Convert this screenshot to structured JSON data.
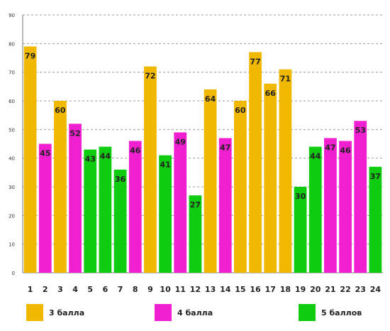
{
  "chart_data": {
    "type": "bar",
    "categories": [
      "1",
      "2",
      "3",
      "4",
      "5",
      "6",
      "7",
      "8",
      "9",
      "10",
      "11",
      "12",
      "13",
      "14",
      "15",
      "16",
      "17",
      "18",
      "19",
      "20",
      "21",
      "22",
      "23",
      "24"
    ],
    "values": [
      79,
      45,
      60,
      52,
      43,
      44,
      36,
      46,
      72,
      41,
      49,
      27,
      64,
      47,
      60,
      77,
      66,
      71,
      30,
      44,
      47,
      46,
      53,
      37
    ],
    "groups": [
      "3",
      "4",
      "3",
      "4",
      "5",
      "5",
      "5",
      "4",
      "3",
      "5",
      "4",
      "5",
      "3",
      "4",
      "3",
      "3",
      "3",
      "3",
      "5",
      "5",
      "4",
      "4",
      "4",
      "5"
    ],
    "ylim": [
      0,
      90
    ],
    "yticks": [
      0,
      10,
      20,
      30,
      40,
      50,
      60,
      70,
      80,
      90
    ],
    "grid": true,
    "legend_placement": "bottom",
    "series": [
      {
        "key": "3",
        "name": "3 балла",
        "color": "#f0b800"
      },
      {
        "key": "4",
        "name": "4 балла",
        "color": "#f020d0"
      },
      {
        "key": "5",
        "name": "5 баллов",
        "color": "#10cc10"
      }
    ]
  }
}
